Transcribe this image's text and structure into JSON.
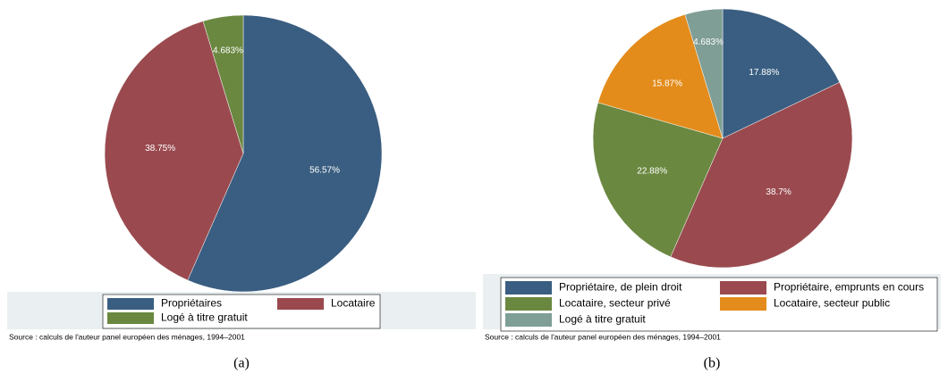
{
  "chart_data": [
    {
      "type": "pie",
      "caption": "(a)",
      "note": "Source : calculs de l'auteur panel européen des ménages, 1994–2001",
      "categories": [
        "Propriétaires",
        "Locataire",
        "Logé à titre gratuit"
      ],
      "values": [
        56.57,
        38.75,
        4.683
      ],
      "value_labels": [
        "56.57%",
        "38.75%",
        "4.683%"
      ],
      "colors": [
        "#3a5e81",
        "#9a4a4f",
        "#6a8840"
      ]
    },
    {
      "type": "pie",
      "caption": "(b)",
      "note": "Source : calculs de l'auteur panel européen des ménages, 1994–2001",
      "categories": [
        "Propriétaire, de plein droit",
        "Propriétaire, emprunts en cours",
        "Locataire, secteur privé",
        "Locataire, secteur public",
        "Logé à titre gratuit"
      ],
      "values": [
        17.88,
        38.7,
        22.88,
        15.87,
        4.683
      ],
      "value_labels": [
        "17.88%",
        "38.7%",
        "22.88%",
        "15.87%",
        "4.683%"
      ],
      "colors": [
        "#3a5e81",
        "#9a4a4f",
        "#6a8840",
        "#e38c1c",
        "#7f9e95"
      ]
    }
  ]
}
